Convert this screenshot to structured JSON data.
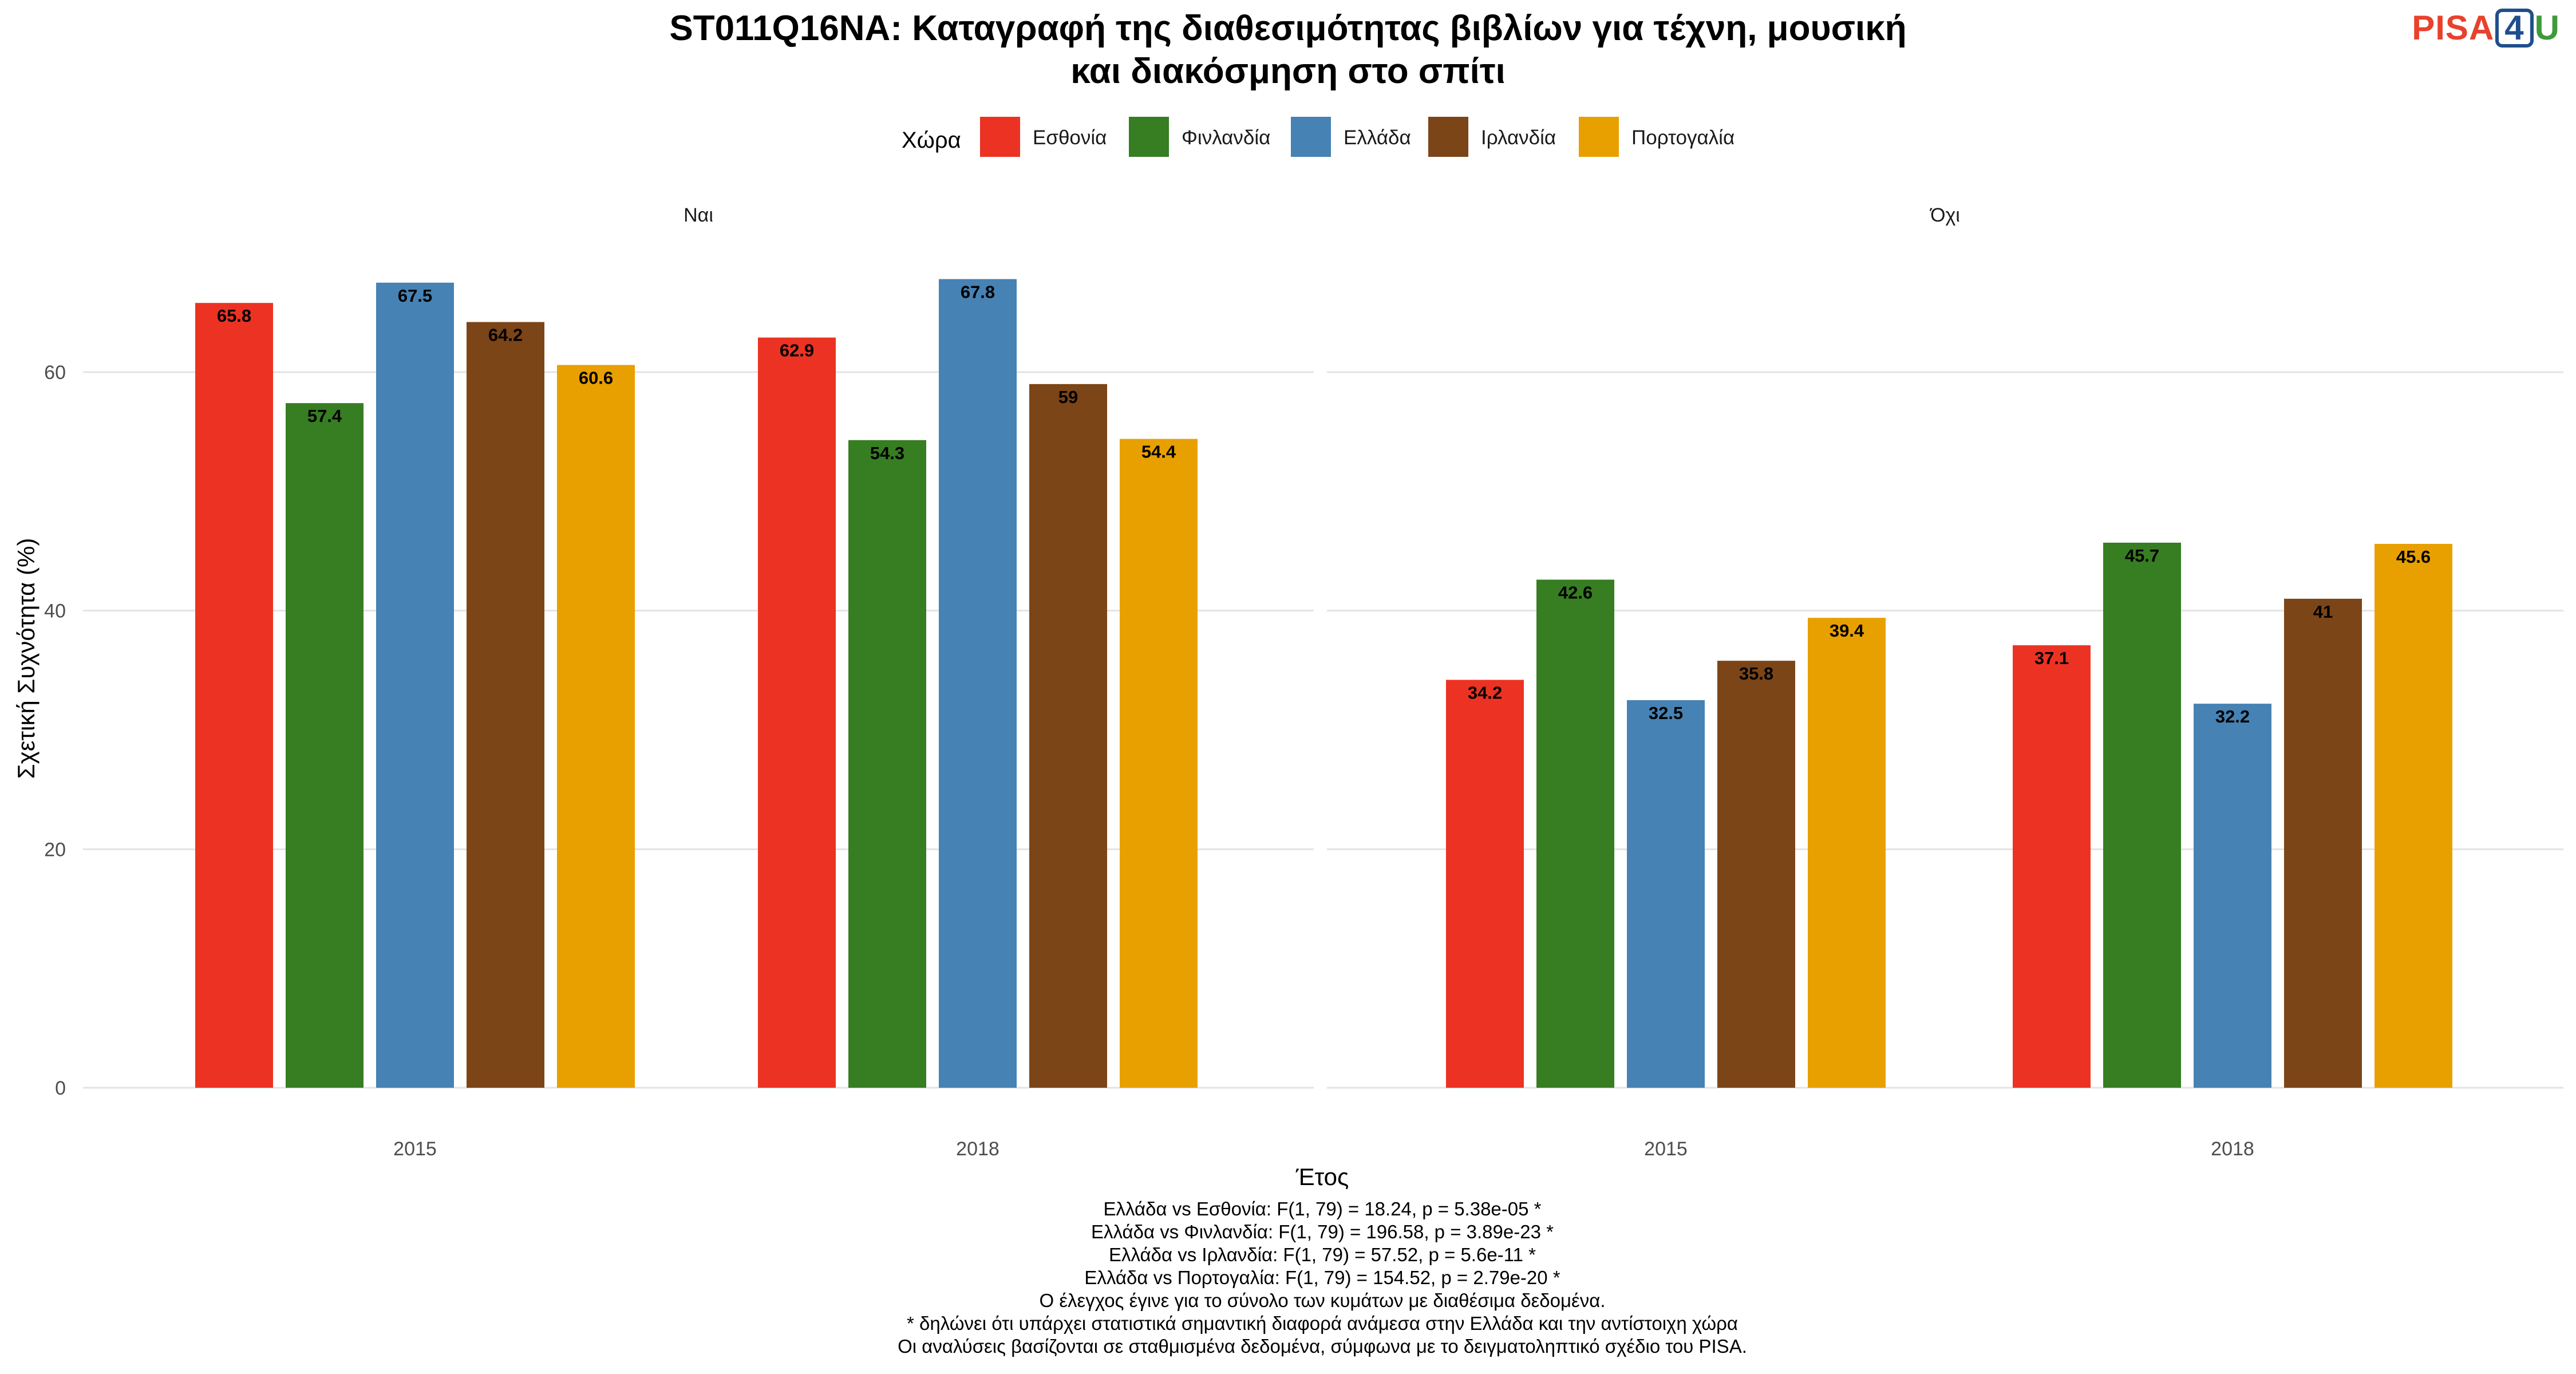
{
  "logo": {
    "part1": "PISA",
    "part2": "4",
    "part3": "U"
  },
  "chart_data": {
    "type": "bar",
    "title": [
      "ST011Q16NA: Καταγραφή της διαθεσιμότητας βιβλίων για τέχνη, μουσική",
      "και διακόσμηση στο σπίτι"
    ],
    "legend_title": "Χώρα",
    "legend_position": "top",
    "xlabel": "Έτος",
    "ylabel": "Σχετική Συχνότητα (%)",
    "ylim": [
      0,
      72
    ],
    "yticks": [
      0,
      20,
      40,
      60
    ],
    "grid": true,
    "series_names": [
      "Εσθονία",
      "Φινλανδία",
      "Ελλάδα",
      "Ιρλανδία",
      "Πορτογαλία"
    ],
    "colors": [
      "#ec3323",
      "#377d22",
      "#4682b4",
      "#7b4518",
      "#e8a000"
    ],
    "panels": [
      {
        "label": "Ναι",
        "groups": [
          {
            "year": "2015",
            "values": [
              65.8,
              57.4,
              67.5,
              64.2,
              60.6
            ],
            "labels": [
              "65.8",
              "57.4",
              "67.5",
              "64.2",
              "60.6"
            ]
          },
          {
            "year": "2018",
            "values": [
              62.9,
              54.3,
              67.8,
              59,
              54.4
            ],
            "labels": [
              "62.9",
              "54.3",
              "67.8",
              "59",
              "54.4"
            ]
          }
        ]
      },
      {
        "label": "Όχι",
        "groups": [
          {
            "year": "2015",
            "values": [
              34.2,
              42.6,
              32.5,
              35.8,
              39.4
            ],
            "labels": [
              "34.2",
              "42.6",
              "32.5",
              "35.8",
              "39.4"
            ]
          },
          {
            "year": "2018",
            "values": [
              37.1,
              45.7,
              32.2,
              41,
              45.6
            ],
            "labels": [
              "37.1",
              "45.7",
              "32.2",
              "41",
              "45.6"
            ]
          }
        ]
      }
    ],
    "caption": [
      "Ελλάδα vs Εσθονία: F(1, 79) = 18.24, p = 5.38e-05 *",
      "Ελλάδα vs Φινλανδία: F(1, 79) = 196.58, p = 3.89e-23 *",
      "Ελλάδα vs Ιρλανδία: F(1, 79) = 57.52, p = 5.6e-11 *",
      "Ελλάδα vs Πορτογαλία: F(1, 79) = 154.52, p = 2.79e-20 *",
      "Ο έλεγχος έγινε για το σύνολο των κυμάτων με διαθέσιμα δεδομένα.",
      "* δηλώνει ότι υπάρχει στατιστικά σημαντική διαφορά ανάμεσα στην Ελλάδα και την αντίστοιχη χώρα",
      "Οι αναλύσεις βασίζονται σε σταθμισμένα δεδομένα, σύμφωνα με το δειγματοληπτικό σχέδιο του PISA."
    ]
  }
}
